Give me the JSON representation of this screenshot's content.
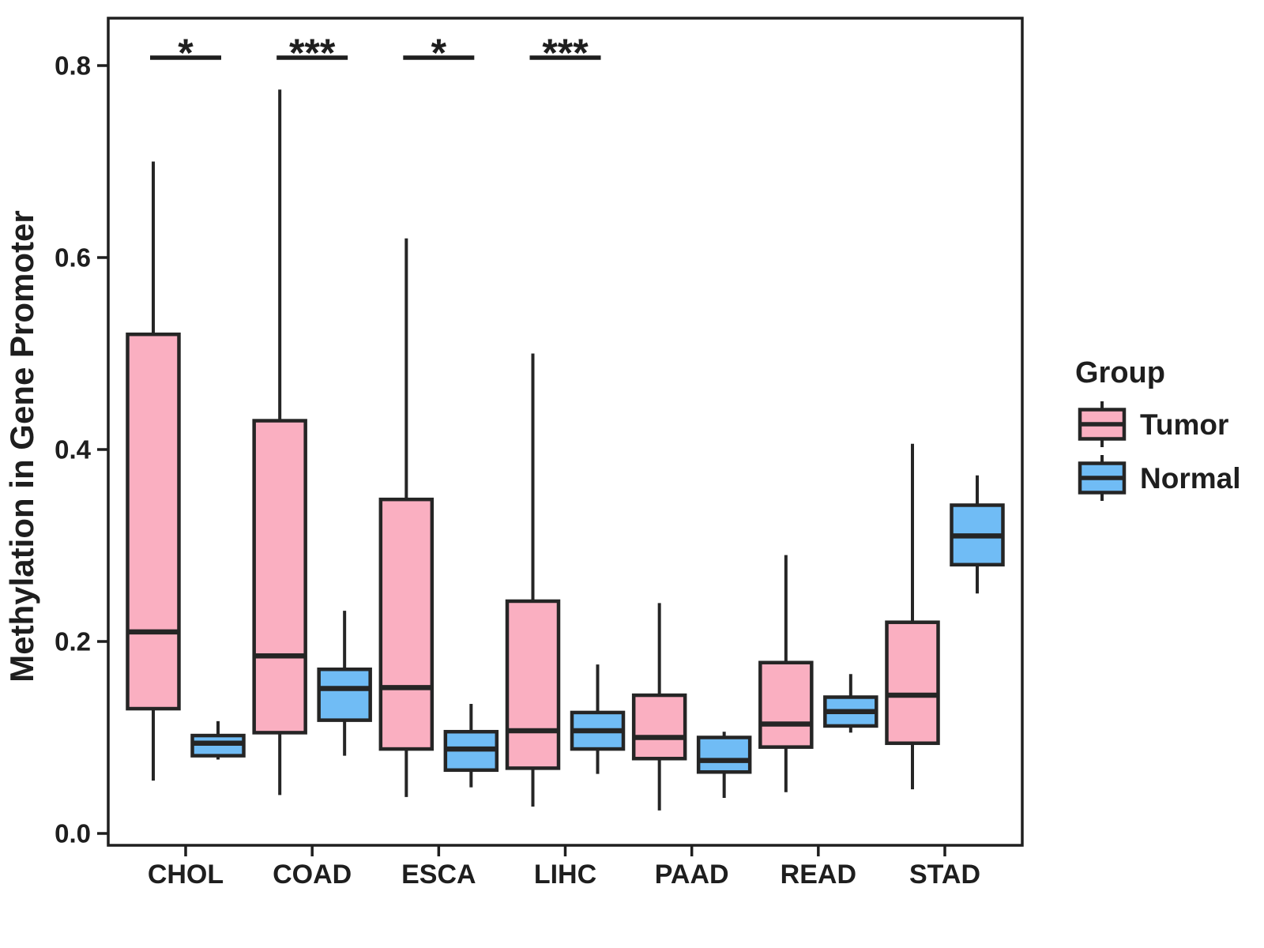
{
  "chart_data": {
    "type": "boxplot",
    "title": "",
    "xlabel": "",
    "ylabel": "Methylation in Gene Promoter",
    "categories": [
      "CHOL",
      "COAD",
      "ESCA",
      "LIHC",
      "PAAD",
      "READ",
      "STAD"
    ],
    "series": [
      {
        "name": "Tumor",
        "color_key": "tumor",
        "stats_order": [
          "whisker_low",
          "q1",
          "median",
          "q3",
          "whisker_high"
        ],
        "values": [
          [
            0.055,
            0.13,
            0.21,
            0.52,
            0.7
          ],
          [
            0.04,
            0.105,
            0.185,
            0.43,
            0.775
          ],
          [
            0.038,
            0.088,
            0.152,
            0.348,
            0.62
          ],
          [
            0.028,
            0.068,
            0.107,
            0.242,
            0.5
          ],
          [
            0.024,
            0.078,
            0.1,
            0.144,
            0.24
          ],
          [
            0.043,
            0.09,
            0.114,
            0.178,
            0.29
          ],
          [
            0.046,
            0.094,
            0.144,
            0.22,
            0.406
          ]
        ]
      },
      {
        "name": "Normal",
        "color_key": "normal",
        "stats_order": [
          "whisker_low",
          "q1",
          "median",
          "q3",
          "whisker_high"
        ],
        "values": [
          [
            0.077,
            0.081,
            0.094,
            0.102,
            0.117
          ],
          [
            0.081,
            0.118,
            0.151,
            0.171,
            0.232
          ],
          [
            0.048,
            0.066,
            0.088,
            0.106,
            0.135
          ],
          [
            0.062,
            0.088,
            0.107,
            0.126,
            0.176
          ],
          [
            0.037,
            0.064,
            0.076,
            0.1,
            0.106
          ],
          [
            0.105,
            0.112,
            0.127,
            0.142,
            0.166
          ],
          [
            0.25,
            0.28,
            0.31,
            0.342,
            0.373
          ]
        ]
      }
    ],
    "significance": [
      {
        "category": "CHOL",
        "label": "*"
      },
      {
        "category": "COAD",
        "label": "***"
      },
      {
        "category": "ESCA",
        "label": "*"
      },
      {
        "category": "LIHC",
        "label": "***"
      }
    ],
    "significance_y": 0.808,
    "yticks": [
      {
        "value": 0.0,
        "label": "0.0"
      },
      {
        "value": 0.2,
        "label": "0.2"
      },
      {
        "value": 0.4,
        "label": "0.4"
      },
      {
        "value": 0.6,
        "label": "0.6"
      },
      {
        "value": 0.8,
        "label": "0.8"
      }
    ],
    "ylim": [
      -0.012,
      0.849
    ],
    "grid": false,
    "legend": {
      "title": "Group",
      "position": "right",
      "entries": [
        {
          "label": "Tumor",
          "color_key": "tumor"
        },
        {
          "label": "Normal",
          "color_key": "normal"
        }
      ]
    },
    "colors": {
      "tumor": "#FAAFC1",
      "normal": "#70BCF5",
      "stroke": "#252525",
      "text": "#1E1E1E",
      "panel_border": "#1F1F1F",
      "background": "#FFFFFF"
    }
  }
}
